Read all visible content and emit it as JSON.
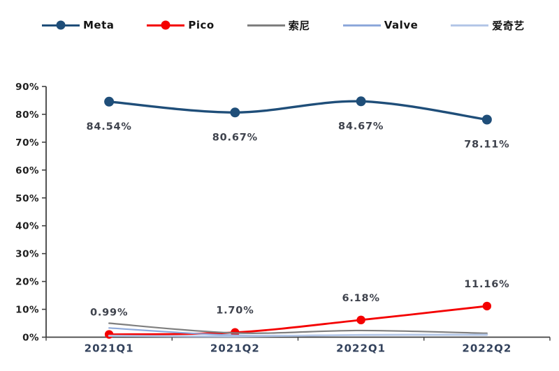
{
  "chart_data": {
    "type": "line",
    "title": "",
    "categories": [
      "2021Q1",
      "2021Q2",
      "2022Q1",
      "2022Q2"
    ],
    "series": [
      {
        "name": "Meta",
        "color": "#1F4E79",
        "marker": true,
        "values": [
          84.54,
          80.67,
          84.67,
          78.11
        ],
        "labels": [
          "84.54%",
          "80.67%",
          "84.67%",
          "78.11%"
        ],
        "label_side": "below"
      },
      {
        "name": "Pico",
        "color": "#F40000",
        "marker": true,
        "values": [
          0.99,
          1.7,
          6.18,
          11.16
        ],
        "labels": [
          "0.99%",
          "1.70%",
          "6.18%",
          "11.16%"
        ],
        "label_side": "above"
      },
      {
        "name": "索尼",
        "color": "#7F7F7F",
        "marker": false,
        "values": [
          5.0,
          1.5,
          2.4,
          1.4
        ],
        "labels": null,
        "label_side": null
      },
      {
        "name": "Valve",
        "color": "#8EA9DB",
        "marker": false,
        "values": [
          3.3,
          0.7,
          0.8,
          0.8
        ],
        "labels": null,
        "label_side": null
      },
      {
        "name": "爱奇艺",
        "color": "#B4C7E7",
        "marker": false,
        "values": [
          0.5,
          0.3,
          0.8,
          0.9
        ],
        "labels": null,
        "label_side": null
      }
    ],
    "ylim": [
      0,
      90
    ],
    "ytick_labels": [
      "0%",
      "10%",
      "20%",
      "30%",
      "40%",
      "50%",
      "60%",
      "70%",
      "80%",
      "90%"
    ],
    "legend_position": "top",
    "grid": false
  }
}
